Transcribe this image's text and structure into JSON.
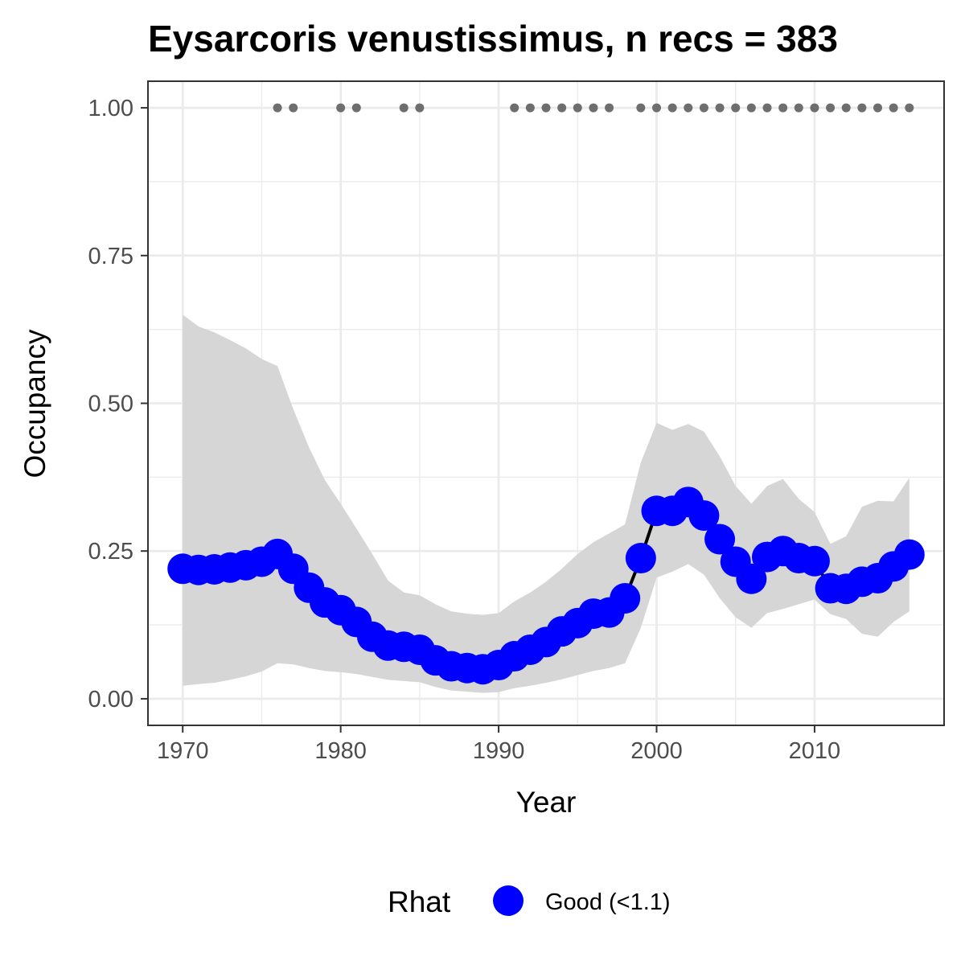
{
  "chart_data": {
    "type": "line",
    "title": "Eysarcoris venustissimus, n recs = 383",
    "xlabel": "Year",
    "ylabel": "Occupancy",
    "xlim": [
      1967.8,
      2018.2
    ],
    "ylim": [
      -0.045,
      1.045
    ],
    "x_ticks": [
      1970,
      1980,
      1990,
      2000,
      2010
    ],
    "x_tick_labels": [
      "1970",
      "1980",
      "1990",
      "2000",
      "2010"
    ],
    "y_ticks": [
      0,
      0.25,
      0.5,
      0.75,
      1.0
    ],
    "y_tick_labels": [
      "0.00",
      "0.25",
      "0.50",
      "0.75",
      "1.00"
    ],
    "grid": true,
    "legend": {
      "title": "Rhat",
      "position": "bottom",
      "entries": [
        {
          "label": "Good (<1.1)",
          "color": "#0000ff"
        }
      ]
    },
    "colors": {
      "points": "#0000ff",
      "line": "#000000",
      "ribbon": "#d6d6d6",
      "record_years": "#6e6e6e",
      "grid": "#ebebeb",
      "panel_border": "#333333"
    },
    "record_years": [
      1976,
      1977,
      1980,
      1981,
      1984,
      1985,
      1991,
      1992,
      1993,
      1994,
      1995,
      1996,
      1997,
      1999,
      2000,
      2001,
      2002,
      2003,
      2004,
      2005,
      2006,
      2007,
      2008,
      2009,
      2010,
      2011,
      2012,
      2013,
      2014,
      2015,
      2016
    ],
    "record_marker_y": 1.0,
    "series": [
      {
        "name": "Good (<1.1)",
        "x": [
          1970,
          1971,
          1972,
          1973,
          1974,
          1975,
          1976,
          1977,
          1978,
          1979,
          1980,
          1981,
          1982,
          1983,
          1984,
          1985,
          1986,
          1987,
          1988,
          1989,
          1990,
          1991,
          1992,
          1993,
          1994,
          1995,
          1996,
          1997,
          1998,
          1999,
          2000,
          2001,
          2002,
          2003,
          2004,
          2005,
          2006,
          2007,
          2008,
          2009,
          2010,
          2011,
          2012,
          2013,
          2014,
          2015,
          2016
        ],
        "y": [
          0.22,
          0.218,
          0.219,
          0.222,
          0.226,
          0.232,
          0.245,
          0.22,
          0.188,
          0.163,
          0.15,
          0.13,
          0.105,
          0.09,
          0.088,
          0.083,
          0.065,
          0.055,
          0.052,
          0.05,
          0.057,
          0.072,
          0.083,
          0.096,
          0.114,
          0.128,
          0.144,
          0.146,
          0.17,
          0.238,
          0.318,
          0.318,
          0.333,
          0.31,
          0.27,
          0.232,
          0.203,
          0.24,
          0.25,
          0.238,
          0.233,
          0.187,
          0.186,
          0.198,
          0.204,
          0.224,
          0.244
        ],
        "lower": [
          0.022,
          0.025,
          0.027,
          0.032,
          0.038,
          0.046,
          0.06,
          0.058,
          0.052,
          0.047,
          0.045,
          0.042,
          0.037,
          0.032,
          0.03,
          0.028,
          0.02,
          0.014,
          0.012,
          0.01,
          0.011,
          0.018,
          0.022,
          0.027,
          0.033,
          0.04,
          0.047,
          0.052,
          0.06,
          0.12,
          0.205,
          0.215,
          0.228,
          0.21,
          0.17,
          0.138,
          0.12,
          0.145,
          0.152,
          0.16,
          0.168,
          0.143,
          0.135,
          0.11,
          0.105,
          0.13,
          0.148
        ],
        "upper": [
          0.65,
          0.63,
          0.62,
          0.607,
          0.593,
          0.575,
          0.563,
          0.49,
          0.425,
          0.37,
          0.33,
          0.288,
          0.245,
          0.2,
          0.18,
          0.175,
          0.16,
          0.148,
          0.144,
          0.142,
          0.145,
          0.165,
          0.18,
          0.198,
          0.22,
          0.245,
          0.265,
          0.28,
          0.295,
          0.4,
          0.467,
          0.455,
          0.465,
          0.452,
          0.41,
          0.36,
          0.33,
          0.36,
          0.372,
          0.338,
          0.316,
          0.262,
          0.275,
          0.325,
          0.335,
          0.334,
          0.374
        ]
      }
    ]
  }
}
